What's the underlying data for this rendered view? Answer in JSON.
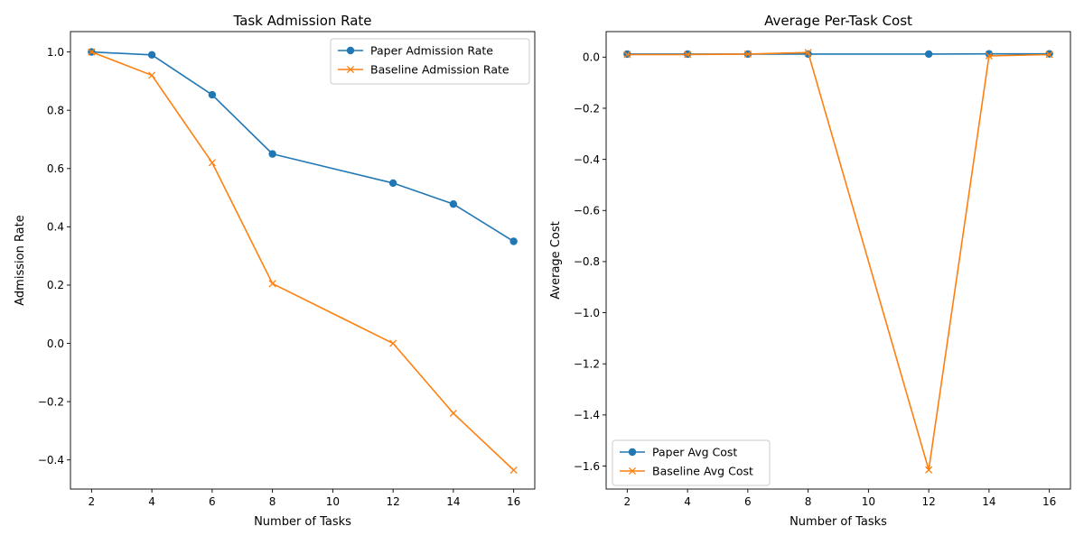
{
  "chart_data": [
    {
      "type": "line",
      "title": "Task Admission Rate",
      "xlabel": "Number of Tasks",
      "ylabel": "Admission Rate",
      "x": [
        2,
        4,
        6,
        8,
        12,
        14,
        16
      ],
      "xlim": [
        1.3,
        16.7
      ],
      "ylim": [
        -0.5,
        1.07
      ],
      "xticks": [
        2,
        4,
        6,
        8,
        10,
        12,
        14,
        16
      ],
      "xtick_labels": [
        "2",
        "4",
        "6",
        "8",
        "10",
        "12",
        "14",
        "16"
      ],
      "yticks": [
        -0.4,
        -0.2,
        0.0,
        0.2,
        0.4,
        0.6,
        0.8,
        1.0
      ],
      "ytick_labels": [
        "−0.4",
        "−0.2",
        "0.0",
        "0.2",
        "0.4",
        "0.6",
        "0.8",
        "1.0"
      ],
      "legend_position": "top-right",
      "series": [
        {
          "name": "Paper Admission Rate",
          "values": [
            1.0,
            0.99,
            0.853,
            0.65,
            0.55,
            0.478,
            0.35
          ],
          "color": "#1f77b4",
          "marker": "circle"
        },
        {
          "name": "Baseline Admission Rate",
          "values": [
            1.0,
            0.92,
            0.62,
            0.205,
            0.0,
            -0.24,
            -0.435
          ],
          "color": "#ff7f0e",
          "marker": "x"
        }
      ]
    },
    {
      "type": "line",
      "title": "Average Per-Task Cost",
      "xlabel": "Number of Tasks",
      "ylabel": "Average Cost",
      "x": [
        2,
        4,
        6,
        8,
        12,
        14,
        16
      ],
      "xlim": [
        1.3,
        16.7
      ],
      "ylim": [
        -1.69,
        0.1
      ],
      "xticks": [
        2,
        4,
        6,
        8,
        10,
        12,
        14,
        16
      ],
      "xtick_labels": [
        "2",
        "4",
        "6",
        "8",
        "10",
        "12",
        "14",
        "16"
      ],
      "yticks": [
        -1.6,
        -1.4,
        -1.2,
        -1.0,
        -0.8,
        -0.6,
        -0.4,
        -0.2,
        0.0
      ],
      "ytick_labels": [
        "−1.6",
        "−1.4",
        "−1.2",
        "−1.0",
        "−0.8",
        "−0.6",
        "−0.4",
        "−0.2",
        "0.0"
      ],
      "legend_position": "bottom-left",
      "series": [
        {
          "name": "Paper Avg Cost",
          "values": [
            0.012,
            0.012,
            0.012,
            0.012,
            0.012,
            0.013,
            0.013
          ],
          "color": "#1f77b4",
          "marker": "circle"
        },
        {
          "name": "Baseline Avg Cost",
          "values": [
            0.01,
            0.01,
            0.012,
            0.018,
            -1.615,
            0.005,
            0.01
          ],
          "color": "#ff7f0e",
          "marker": "x"
        }
      ]
    }
  ]
}
